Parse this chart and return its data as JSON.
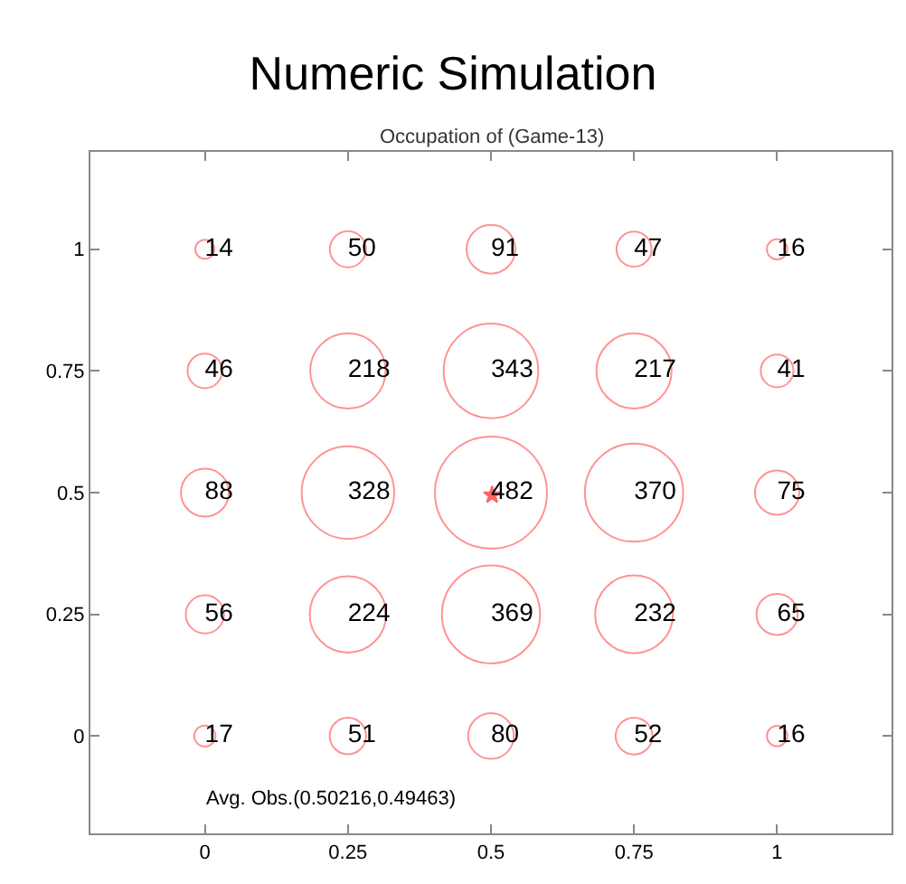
{
  "chart_data": {
    "type": "bubble",
    "title": "Numeric Simulation",
    "subtitle": "Occupation of (Game-13)",
    "annotations": [
      "Avg. Obs.(0.50216,0.49463)"
    ],
    "xlim": [
      -0.2,
      1.2
    ],
    "ylim": [
      -0.2,
      1.2
    ],
    "xticks": [
      0,
      0.25,
      0.5,
      0.75,
      1
    ],
    "yticks": [
      0,
      0.25,
      0.5,
      0.75,
      1
    ],
    "series": [
      {
        "color": "#ff6666",
        "x": [
          0,
          0.25,
          0.5,
          0.75,
          1,
          0,
          0.25,
          0.5,
          0.75,
          1,
          0,
          0.25,
          0.5,
          0.75,
          1,
          0,
          0.25,
          0.5,
          0.75,
          1,
          0,
          0.25,
          0.5,
          0.75,
          1
        ],
        "values": [
          1,
          1,
          1,
          1,
          1,
          0.75,
          0.75,
          0.75,
          0.75,
          0.75,
          0.5,
          0.5,
          0.5,
          0.5,
          0.5,
          0.25,
          0.25,
          0.25,
          0.25,
          0.25,
          0,
          0,
          0,
          0,
          0
        ],
        "sizes": [
          14,
          50,
          91,
          47,
          16,
          46,
          218,
          343,
          217,
          41,
          88,
          328,
          482,
          370,
          75,
          56,
          224,
          369,
          232,
          65,
          17,
          51,
          80,
          52,
          16
        ],
        "value_labels": [
          "14",
          "50",
          "91",
          "47",
          "16",
          "46",
          "218",
          "343",
          "217",
          "41",
          "88",
          "328",
          "482",
          "370",
          "75",
          "56",
          "224",
          "369",
          "232",
          "65",
          "17",
          "51",
          "80",
          "52",
          "16"
        ]
      },
      {
        "type": "scatter",
        "marker": "star",
        "color": "#ff6666",
        "x": [
          0.502
        ],
        "values": [
          0.495
        ]
      }
    ]
  }
}
